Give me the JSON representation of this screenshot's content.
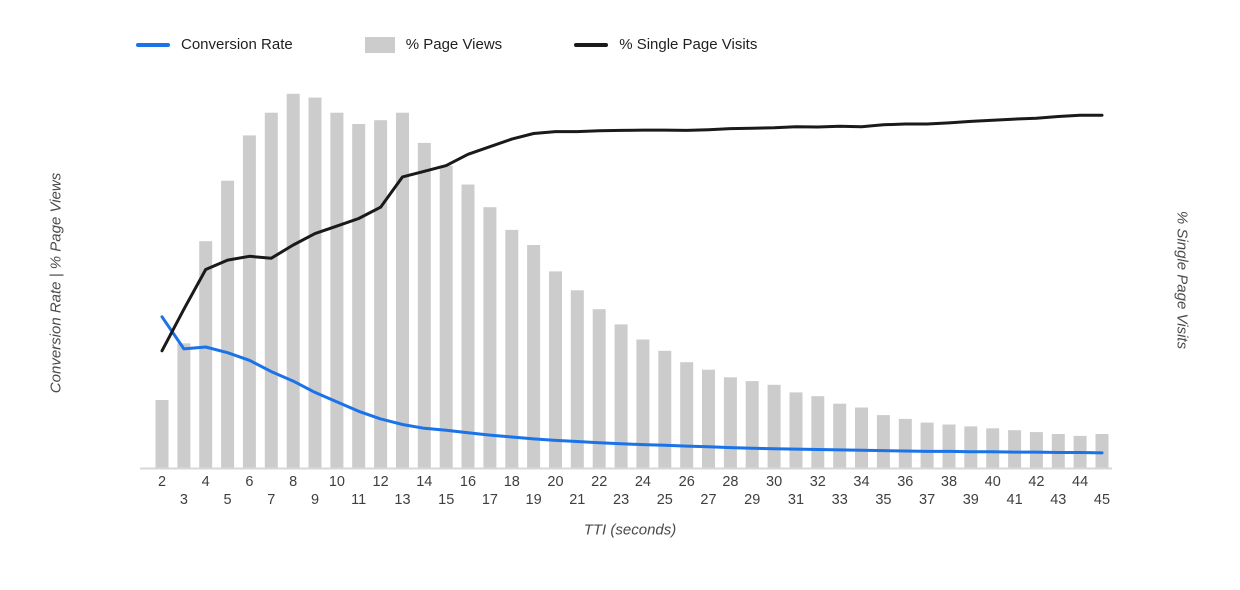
{
  "chart_data": {
    "type": "bar",
    "subtype": "combo-bar-line",
    "title": "",
    "xlabel": "TTI (seconds)",
    "ylabel_left": "Conversion Rate | % Page Views",
    "ylabel_right": "% Single Page Visits",
    "x": [
      2,
      3,
      4,
      5,
      6,
      7,
      8,
      9,
      10,
      11,
      12,
      13,
      14,
      15,
      16,
      17,
      18,
      19,
      20,
      21,
      22,
      23,
      24,
      25,
      26,
      27,
      28,
      29,
      30,
      31,
      32,
      33,
      34,
      35,
      36,
      37,
      38,
      39,
      40,
      41,
      42,
      43,
      44,
      45
    ],
    "series": [
      {
        "name": "Conversion Rate",
        "type": "line",
        "axis": "left",
        "color": "#1a73e8",
        "values": [
          4.0,
          3.15,
          3.2,
          3.05,
          2.85,
          2.55,
          2.3,
          2.0,
          1.75,
          1.5,
          1.3,
          1.15,
          1.05,
          1.0,
          0.93,
          0.87,
          0.82,
          0.77,
          0.73,
          0.7,
          0.67,
          0.64,
          0.62,
          0.6,
          0.58,
          0.56,
          0.54,
          0.52,
          0.51,
          0.5,
          0.49,
          0.48,
          0.47,
          0.46,
          0.45,
          0.44,
          0.44,
          0.43,
          0.43,
          0.42,
          0.42,
          0.41,
          0.41,
          0.4
        ]
      },
      {
        "name": "% Page Views",
        "type": "bar",
        "axis": "left",
        "color": "#cccccc",
        "values": [
          1.8,
          3.3,
          6.0,
          7.6,
          8.8,
          9.4,
          9.9,
          9.8,
          9.4,
          9.1,
          9.2,
          9.4,
          8.6,
          8.0,
          7.5,
          6.9,
          6.3,
          5.9,
          5.2,
          4.7,
          4.2,
          3.8,
          3.4,
          3.1,
          2.8,
          2.6,
          2.4,
          2.3,
          2.2,
          2.0,
          1.9,
          1.7,
          1.6,
          1.4,
          1.3,
          1.2,
          1.15,
          1.1,
          1.05,
          1.0,
          0.95,
          0.9,
          0.85,
          0.9
        ]
      },
      {
        "name": "% Single Page Visits",
        "type": "line",
        "axis": "right",
        "color": "#1a1a1a",
        "values": [
          31,
          42,
          52.5,
          55,
          56,
          55.5,
          59,
          62,
          64,
          66,
          69,
          77,
          78.5,
          80,
          83,
          85,
          87,
          88.5,
          89,
          89,
          89.2,
          89.3,
          89.4,
          89.4,
          89.3,
          89.5,
          89.8,
          89.9,
          90,
          90.3,
          90.2,
          90.4,
          90.3,
          90.8,
          91,
          91,
          91.3,
          91.7,
          92,
          92.3,
          92.5,
          93,
          93.3,
          93.3
        ]
      }
    ],
    "axis": {
      "x_min": 2,
      "x_max": 45,
      "y_left_range": [
        0,
        10
      ],
      "y_right_range": [
        0,
        100
      ],
      "y_left_max": 10,
      "y_right_max": 100,
      "grid": false,
      "y_tick_labels_shown": false,
      "legend_position": "top",
      "x_tick_layout": "staggered-two-rows"
    },
    "colors": {
      "background": "#ffffff",
      "axis_line": "#d7d7d7",
      "tick_label": "#3c4043"
    }
  }
}
